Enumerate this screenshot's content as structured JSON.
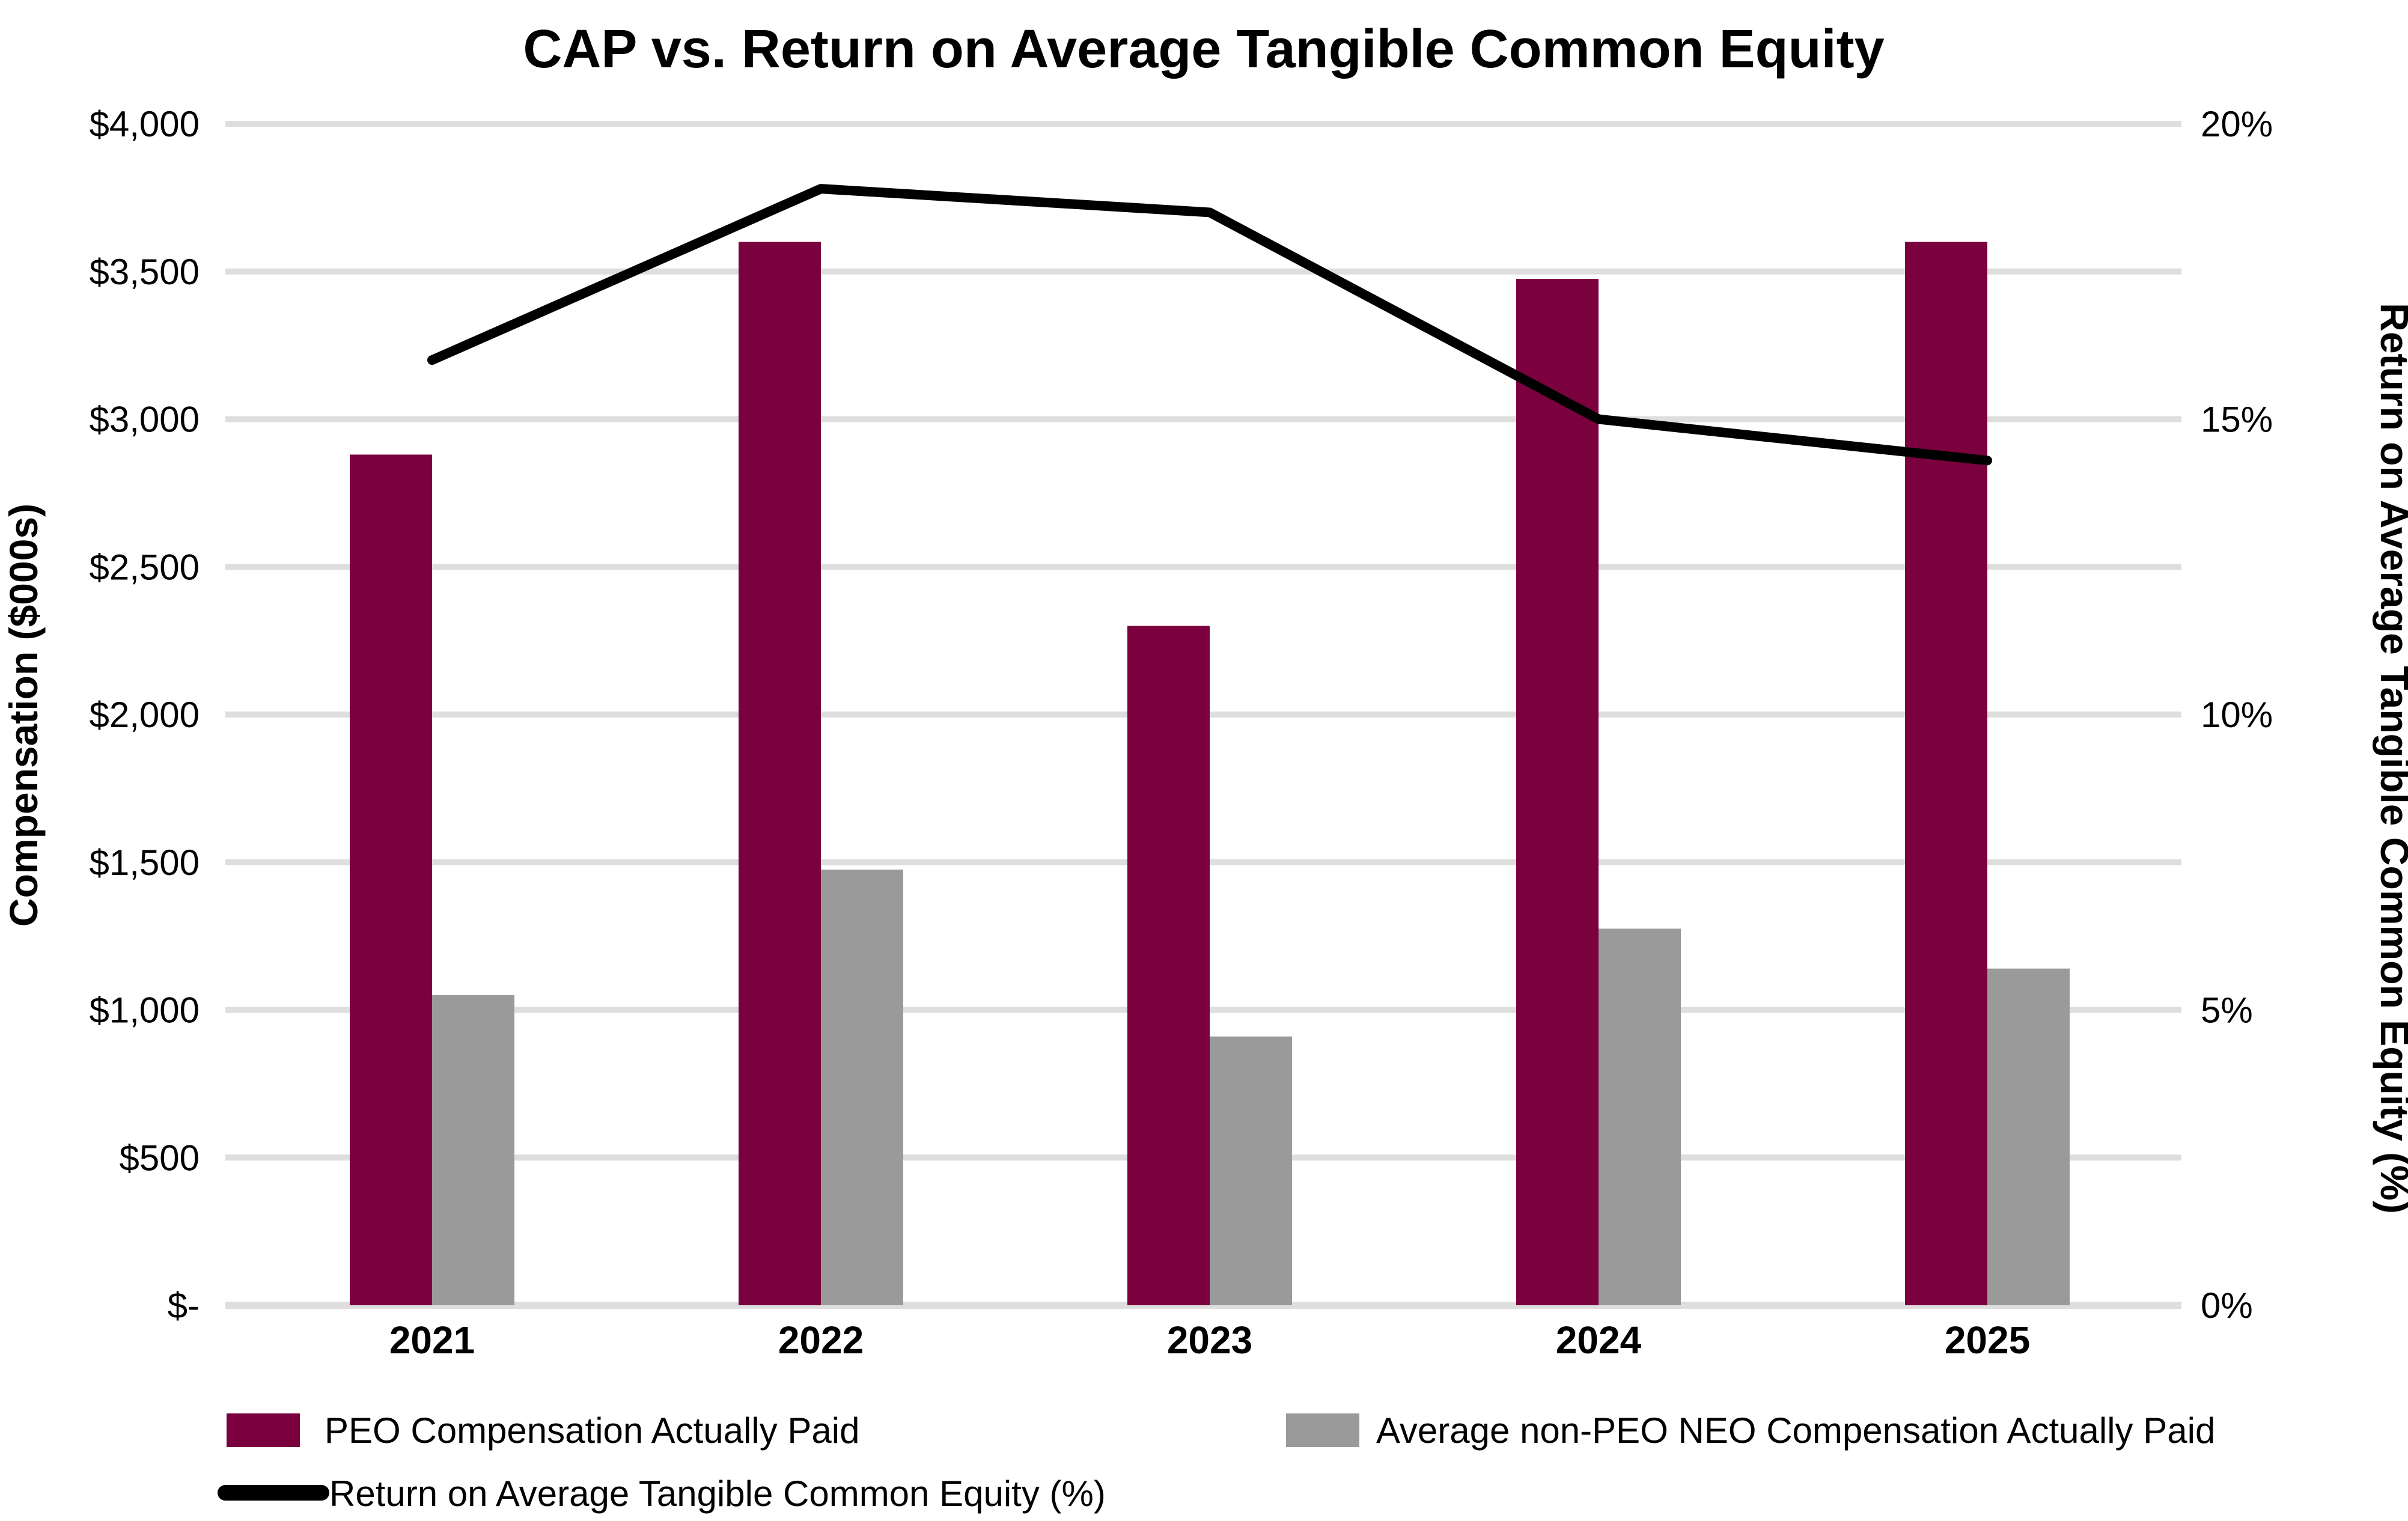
{
  "title": "CAP vs. Return on Average Tangible Common Equity",
  "chart_data": {
    "type": "bar",
    "subtype": "grouped-bars-with-line-combo",
    "categories": [
      "2021",
      "2022",
      "2023",
      "2024",
      "2025"
    ],
    "series": [
      {
        "name": "PEO Compensation Actually Paid",
        "type": "bar",
        "axis": "left",
        "color": "#7A013E",
        "values": [
          2880,
          3600,
          2300,
          3475,
          3600
        ]
      },
      {
        "name": "Average non-PEO NEO Compensation Actually Paid",
        "type": "bar",
        "axis": "left",
        "color": "#9A9A9A",
        "values": [
          1050,
          1475,
          910,
          1275,
          1140
        ]
      },
      {
        "name": "Return on Average Tangible Common Equity (%)",
        "type": "line",
        "axis": "right",
        "color": "#000000",
        "values": [
          16.0,
          18.9,
          18.5,
          15.0,
          14.3
        ]
      }
    ],
    "left_axis": {
      "title": "Compensation ($000s)",
      "ticks": [
        "$4,000",
        "$3,500",
        "$3,000",
        "$2,500",
        "$2,000",
        "$1,500",
        "$1,000",
        "$500",
        "$-"
      ],
      "min": 0,
      "max": 4000,
      "tick_step": 500
    },
    "right_axis": {
      "title": "Return on Average Tangible Common Equity (%)",
      "ticks": [
        "20%",
        "15%",
        "10%",
        "5%",
        "0%"
      ],
      "min": 0,
      "max": 20,
      "tick_step": 5
    },
    "grid": true,
    "gridline_color": "#DEDEDE",
    "legend_position": "bottom"
  }
}
